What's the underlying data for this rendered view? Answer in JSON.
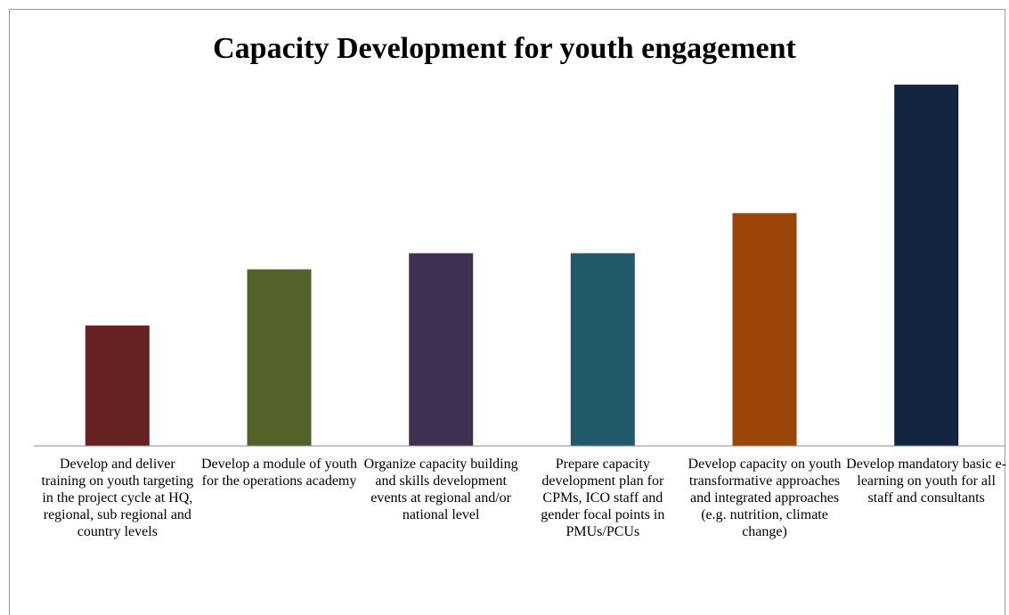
{
  "chart_data": {
    "type": "bar",
    "title": "Capacity Development for youth engagement",
    "xlabel": "",
    "ylabel": "",
    "categories": [
      "Develop and deliver training on youth targeting in the project cycle at HQ, regional, sub regional and country levels",
      "Develop a module of youth for the operations academy",
      "Organize capacity building and skills development events at regional and/or national level",
      "Prepare capacity development plan for CPMs, ICO staff and gender focal points in PMUs/PCUs",
      "Develop capacity on youth transformative approaches and integrated approaches (e.g. nutrition, climate change)",
      "Develop mandatory basic e-learning on youth for all staff and consultants"
    ],
    "values": [
      1.5,
      2.2,
      2.4,
      2.4,
      2.9,
      4.5
    ],
    "ylim": [
      0,
      5
    ],
    "grid": false,
    "colors": [
      "#662222",
      "#536228",
      "#40304f",
      "#215a6a",
      "#994608",
      "#12243f"
    ]
  }
}
